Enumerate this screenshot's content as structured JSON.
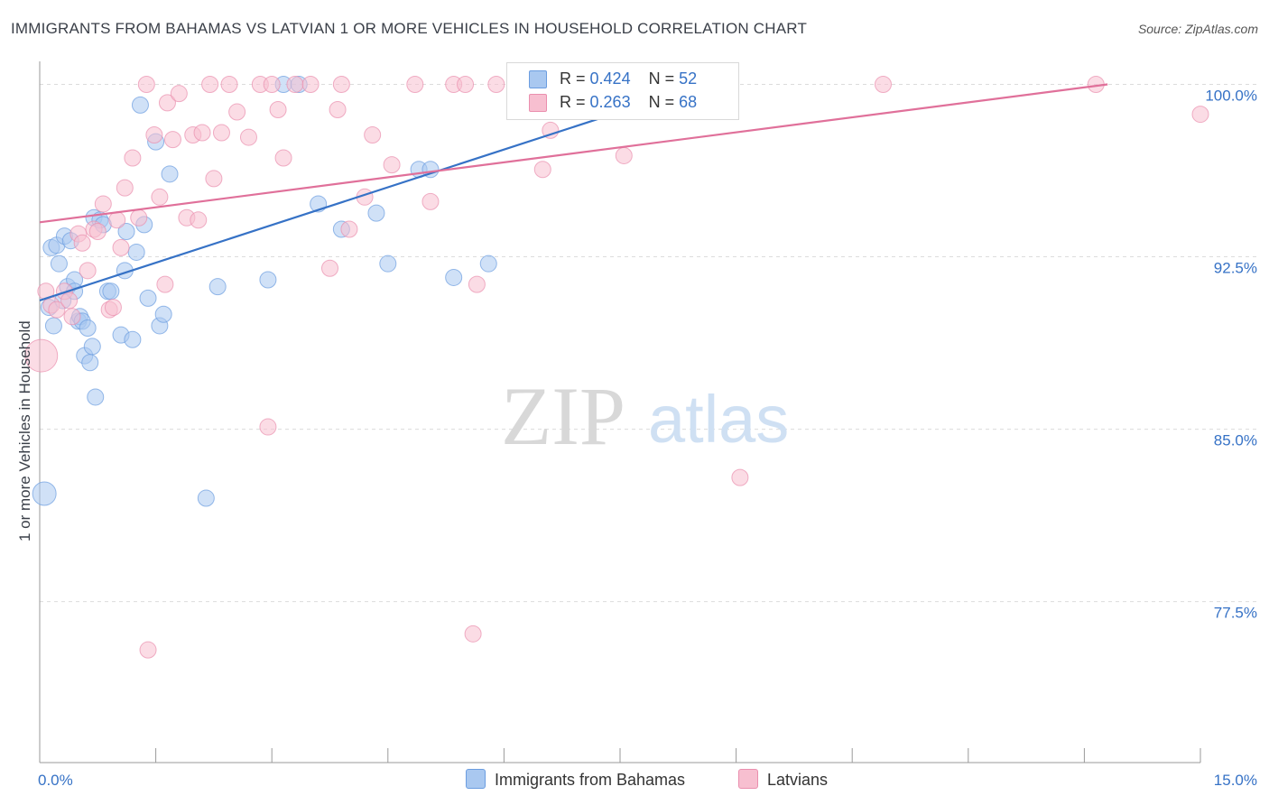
{
  "title": "IMMIGRANTS FROM BAHAMAS VS LATVIAN 1 OR MORE VEHICLES IN HOUSEHOLD CORRELATION CHART",
  "source": "Source: ZipAtlas.com",
  "watermark": {
    "zip": "ZIP",
    "atlas": "atlas"
  },
  "colors": {
    "blue_fill": "#a9c8f0",
    "blue_stroke": "#6b9de0",
    "blue_line": "#3672c6",
    "pink_fill": "#f7bfd0",
    "pink_stroke": "#ea8fae",
    "pink_line": "#e0709a",
    "axis_text": "#3672c6",
    "grid": "#dcdcdc"
  },
  "legend": {
    "rows": [
      {
        "r_label": "R =",
        "r_value": "0.424",
        "n_label": "N =",
        "n_value": "52",
        "color": "#a9c8f0"
      },
      {
        "r_label": "R =",
        "r_value": "0.263",
        "n_label": "N =",
        "n_value": "68",
        "color": "#f7bfd0"
      }
    ]
  },
  "chart_data": {
    "type": "scatter",
    "title": "IMMIGRANTS FROM BAHAMAS VS LATVIAN 1 OR MORE VEHICLES IN HOUSEHOLD CORRELATION CHART",
    "xlabel": "",
    "ylabel": "1 or more Vehicles in Household",
    "xlim": [
      0,
      15
    ],
    "ylim": [
      70.5,
      101
    ],
    "x_tick_labels": [
      "0.0%",
      "15.0%"
    ],
    "y_ticks": [
      77.5,
      85.0,
      92.5,
      100.0
    ],
    "y_tick_labels": [
      "77.5%",
      "85.0%",
      "92.5%",
      "100.0%"
    ],
    "grid": true,
    "legend_placement": "bottom-center",
    "series": [
      {
        "name": "Immigrants from Bahamas",
        "color": "#a9c8f0",
        "trend": {
          "x0": 0.0,
          "y0": 90.6,
          "x1": 8.5,
          "y1": 99.9,
          "solid_until": 8.0
        },
        "points": [
          [
            0.06,
            82.2
          ],
          [
            0.12,
            90.3
          ],
          [
            0.15,
            92.9
          ],
          [
            0.18,
            89.5
          ],
          [
            0.22,
            93.0
          ],
          [
            0.25,
            92.2
          ],
          [
            0.3,
            90.6
          ],
          [
            0.32,
            93.4
          ],
          [
            0.36,
            91.2
          ],
          [
            0.4,
            93.2
          ],
          [
            0.45,
            91.5
          ],
          [
            0.45,
            91.0
          ],
          [
            0.5,
            89.7
          ],
          [
            0.52,
            89.9
          ],
          [
            0.55,
            89.7
          ],
          [
            0.58,
            88.2
          ],
          [
            0.62,
            89.4
          ],
          [
            0.65,
            87.9
          ],
          [
            0.68,
            88.6
          ],
          [
            0.7,
            94.2
          ],
          [
            0.72,
            86.4
          ],
          [
            0.78,
            94.1
          ],
          [
            0.82,
            93.9
          ],
          [
            0.88,
            91.0
          ],
          [
            0.92,
            91.0
          ],
          [
            1.05,
            89.1
          ],
          [
            1.1,
            91.9
          ],
          [
            1.12,
            93.6
          ],
          [
            1.2,
            88.9
          ],
          [
            1.25,
            92.7
          ],
          [
            1.3,
            99.1
          ],
          [
            1.35,
            93.9
          ],
          [
            1.4,
            90.7
          ],
          [
            1.5,
            97.5
          ],
          [
            1.55,
            89.5
          ],
          [
            1.6,
            90.0
          ],
          [
            1.68,
            96.1
          ],
          [
            2.15,
            82.0
          ],
          [
            2.3,
            91.2
          ],
          [
            2.95,
            91.5
          ],
          [
            3.15,
            100.0
          ],
          [
            3.35,
            100.0
          ],
          [
            3.6,
            94.8
          ],
          [
            3.9,
            93.7
          ],
          [
            4.35,
            94.4
          ],
          [
            4.5,
            92.2
          ],
          [
            4.9,
            96.3
          ],
          [
            5.05,
            96.3
          ],
          [
            5.35,
            91.6
          ],
          [
            5.8,
            92.2
          ],
          [
            7.15,
            100.0
          ],
          [
            8.0,
            100.0
          ]
        ]
      },
      {
        "name": "Latvians",
        "color": "#f7bfd0",
        "trend": {
          "x0": 0.0,
          "y0": 94.0,
          "x1": 13.8,
          "y1": 100.0
        },
        "points": [
          [
            0.02,
            88.2
          ],
          [
            0.08,
            91.0
          ],
          [
            0.15,
            90.4
          ],
          [
            0.22,
            90.2
          ],
          [
            0.32,
            91.0
          ],
          [
            0.38,
            90.6
          ],
          [
            0.42,
            89.9
          ],
          [
            0.5,
            93.5
          ],
          [
            0.55,
            93.1
          ],
          [
            0.62,
            91.9
          ],
          [
            0.7,
            93.7
          ],
          [
            0.75,
            93.6
          ],
          [
            0.82,
            94.8
          ],
          [
            0.9,
            90.2
          ],
          [
            0.95,
            90.3
          ],
          [
            1.0,
            94.1
          ],
          [
            1.05,
            92.9
          ],
          [
            1.1,
            95.5
          ],
          [
            1.2,
            96.8
          ],
          [
            1.28,
            94.2
          ],
          [
            1.38,
            100.0
          ],
          [
            1.4,
            75.4
          ],
          [
            1.48,
            97.8
          ],
          [
            1.55,
            95.1
          ],
          [
            1.62,
            91.3
          ],
          [
            1.65,
            99.2
          ],
          [
            1.72,
            97.6
          ],
          [
            1.8,
            99.6
          ],
          [
            1.9,
            94.2
          ],
          [
            1.98,
            97.8
          ],
          [
            2.05,
            94.1
          ],
          [
            2.1,
            97.9
          ],
          [
            2.2,
            100.0
          ],
          [
            2.25,
            95.9
          ],
          [
            2.35,
            97.9
          ],
          [
            2.45,
            100.0
          ],
          [
            2.55,
            98.8
          ],
          [
            2.7,
            97.7
          ],
          [
            2.85,
            100.0
          ],
          [
            2.95,
            85.1
          ],
          [
            3.0,
            100.0
          ],
          [
            3.08,
            98.9
          ],
          [
            3.15,
            96.8
          ],
          [
            3.3,
            100.0
          ],
          [
            3.5,
            100.0
          ],
          [
            3.75,
            92.0
          ],
          [
            3.85,
            98.9
          ],
          [
            3.9,
            100.0
          ],
          [
            4.0,
            93.7
          ],
          [
            4.2,
            95.1
          ],
          [
            4.3,
            97.8
          ],
          [
            4.55,
            96.5
          ],
          [
            4.85,
            100.0
          ],
          [
            5.05,
            94.9
          ],
          [
            5.35,
            100.0
          ],
          [
            5.5,
            100.0
          ],
          [
            5.6,
            76.1
          ],
          [
            5.65,
            91.3
          ],
          [
            5.9,
            100.0
          ],
          [
            6.25,
            100.0
          ],
          [
            6.35,
            100.0
          ],
          [
            6.5,
            96.3
          ],
          [
            6.6,
            98.0
          ],
          [
            7.55,
            96.9
          ],
          [
            9.05,
            82.9
          ],
          [
            10.9,
            100.0
          ],
          [
            13.65,
            100.0
          ],
          [
            15.0,
            98.7
          ]
        ]
      }
    ]
  }
}
